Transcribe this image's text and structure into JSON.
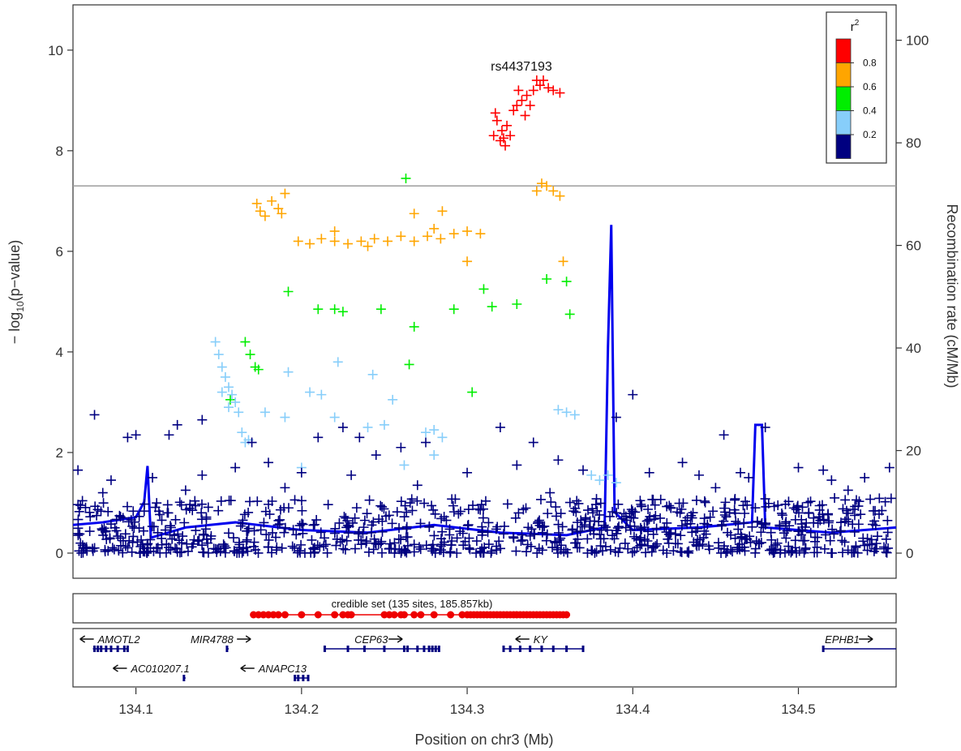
{
  "chart_data": {
    "type": "scatter",
    "title": "",
    "xlabel": "Position on chr3 (Mb)",
    "ylabel": "− log10(p−value)",
    "y2label": "Recombination rate (cM/Mb)",
    "xlim": [
      134.062,
      134.559
    ],
    "ylim": [
      -0.5,
      10.9
    ],
    "y2lim": [
      -4.9,
      106.9
    ],
    "x_ticks": [
      134.1,
      134.2,
      134.3,
      134.4,
      134.5
    ],
    "x_tick_labels": [
      "134.1",
      "134.2",
      "134.3",
      "134.4",
      "134.5"
    ],
    "y_ticks": [
      0,
      2,
      4,
      6,
      8,
      10
    ],
    "y_tick_labels": [
      "0",
      "2",
      "4",
      "6",
      "8",
      "10"
    ],
    "y2_ticks": [
      0,
      20,
      40,
      60,
      80,
      100
    ],
    "y2_tick_labels": [
      "0",
      "20",
      "40",
      "60",
      "80",
      "100"
    ],
    "significance_line": 7.3,
    "lead_snp": {
      "label": "rs4437193",
      "x": 134.345,
      "y": 9.4
    },
    "legend": {
      "title": "r",
      "title_sup": "2",
      "placement": "top-right",
      "bins": [
        {
          "label": "0.8",
          "color": "#ff0000"
        },
        {
          "label": "0.6",
          "color": "#ffa500"
        },
        {
          "label": "0.4",
          "color": "#00ee00"
        },
        {
          "label": "0.2",
          "color": "#87cefa"
        },
        {
          "label": "",
          "color": "#000080"
        }
      ],
      "break_labels": [
        "0.8",
        "0.6",
        "0.4",
        "0.2"
      ]
    },
    "series": [
      {
        "color": "#ff0000",
        "points": [
          [
            134.316,
            8.3
          ],
          [
            134.318,
            8.6
          ],
          [
            134.32,
            8.2
          ],
          [
            134.321,
            8.4
          ],
          [
            134.323,
            8.1
          ],
          [
            134.324,
            8.5
          ],
          [
            134.326,
            8.3
          ],
          [
            134.328,
            8.8
          ],
          [
            134.33,
            8.9
          ],
          [
            134.331,
            9.2
          ],
          [
            134.333,
            9.0
          ],
          [
            134.335,
            8.7
          ],
          [
            134.336,
            9.1
          ],
          [
            134.338,
            8.9
          ],
          [
            134.34,
            9.2
          ],
          [
            134.342,
            9.4
          ],
          [
            134.344,
            9.3
          ],
          [
            134.346,
            9.4
          ],
          [
            134.349,
            9.25
          ],
          [
            134.352,
            9.2
          ],
          [
            134.356,
            9.15
          ],
          [
            134.317,
            8.75
          ],
          [
            134.322,
            8.25
          ]
        ]
      },
      {
        "color": "#ffa500",
        "points": [
          [
            134.173,
            6.95
          ],
          [
            134.175,
            6.8
          ],
          [
            134.178,
            6.7
          ],
          [
            134.182,
            7.0
          ],
          [
            134.186,
            6.85
          ],
          [
            134.188,
            6.75
          ],
          [
            134.19,
            7.15
          ],
          [
            134.198,
            6.2
          ],
          [
            134.205,
            6.15
          ],
          [
            134.212,
            6.25
          ],
          [
            134.22,
            6.2
          ],
          [
            134.228,
            6.15
          ],
          [
            134.236,
            6.2
          ],
          [
            134.244,
            6.25
          ],
          [
            134.252,
            6.2
          ],
          [
            134.26,
            6.3
          ],
          [
            134.268,
            6.2
          ],
          [
            134.276,
            6.3
          ],
          [
            134.284,
            6.25
          ],
          [
            134.292,
            6.35
          ],
          [
            134.3,
            6.4
          ],
          [
            134.308,
            6.35
          ],
          [
            134.268,
            6.75
          ],
          [
            134.285,
            6.8
          ],
          [
            134.3,
            5.8
          ],
          [
            134.342,
            7.2
          ],
          [
            134.345,
            7.35
          ],
          [
            134.348,
            7.3
          ],
          [
            134.352,
            7.2
          ],
          [
            134.356,
            7.1
          ],
          [
            134.358,
            5.8
          ],
          [
            134.22,
            6.4
          ],
          [
            134.24,
            6.1
          ],
          [
            134.28,
            6.45
          ]
        ]
      },
      {
        "color": "#00ee00",
        "points": [
          [
            134.263,
            7.45
          ],
          [
            134.192,
            5.2
          ],
          [
            134.21,
            4.85
          ],
          [
            134.22,
            4.85
          ],
          [
            134.225,
            4.8
          ],
          [
            134.248,
            4.85
          ],
          [
            134.268,
            4.5
          ],
          [
            134.292,
            4.85
          ],
          [
            134.31,
            5.25
          ],
          [
            134.315,
            4.9
          ],
          [
            134.33,
            4.95
          ],
          [
            134.348,
            5.45
          ],
          [
            134.36,
            5.4
          ],
          [
            134.362,
            4.75
          ],
          [
            134.166,
            4.2
          ],
          [
            134.169,
            3.95
          ],
          [
            134.172,
            3.7
          ],
          [
            134.174,
            3.65
          ],
          [
            134.265,
            3.75
          ],
          [
            134.303,
            3.2
          ],
          [
            134.157,
            3.05
          ]
        ]
      },
      {
        "color": "#87cefa",
        "points": [
          [
            134.148,
            4.2
          ],
          [
            134.15,
            3.95
          ],
          [
            134.152,
            3.7
          ],
          [
            134.154,
            3.5
          ],
          [
            134.156,
            3.3
          ],
          [
            134.158,
            3.15
          ],
          [
            134.16,
            3.0
          ],
          [
            134.162,
            2.8
          ],
          [
            134.164,
            2.4
          ],
          [
            134.166,
            2.2
          ],
          [
            134.168,
            2.25
          ],
          [
            134.152,
            3.2
          ],
          [
            134.156,
            2.9
          ],
          [
            134.192,
            3.6
          ],
          [
            134.205,
            3.2
          ],
          [
            134.222,
            3.8
          ],
          [
            134.243,
            3.55
          ],
          [
            134.255,
            3.05
          ],
          [
            134.22,
            2.7
          ],
          [
            134.24,
            2.5
          ],
          [
            134.275,
            2.4
          ],
          [
            134.28,
            2.45
          ],
          [
            134.285,
            2.3
          ],
          [
            134.28,
            1.95
          ],
          [
            134.36,
            2.8
          ],
          [
            134.375,
            1.55
          ],
          [
            134.38,
            1.45
          ],
          [
            134.385,
            1.55
          ],
          [
            134.39,
            1.4
          ],
          [
            134.355,
            2.85
          ],
          [
            134.365,
            2.75
          ],
          [
            134.212,
            3.15
          ],
          [
            134.19,
            2.7
          ],
          [
            134.178,
            2.8
          ],
          [
            134.2,
            1.7
          ],
          [
            134.262,
            1.75
          ],
          [
            134.25,
            2.55
          ]
        ]
      },
      {
        "color": "#000080",
        "points": [
          [
            134.075,
            2.75
          ],
          [
            134.095,
            2.3
          ],
          [
            134.1,
            2.35
          ],
          [
            134.12,
            2.35
          ],
          [
            134.125,
            2.55
          ],
          [
            134.14,
            2.65
          ],
          [
            134.17,
            2.2
          ],
          [
            134.21,
            2.3
          ],
          [
            134.225,
            2.5
          ],
          [
            134.235,
            2.3
          ],
          [
            134.26,
            2.1
          ],
          [
            134.275,
            2.2
          ],
          [
            134.32,
            2.5
          ],
          [
            134.34,
            2.2
          ],
          [
            134.39,
            2.7
          ],
          [
            134.4,
            3.15
          ],
          [
            134.455,
            2.35
          ],
          [
            134.48,
            2.5
          ],
          [
            134.245,
            1.95
          ],
          [
            134.355,
            1.85
          ],
          [
            134.43,
            1.8
          ],
          [
            134.465,
            1.6
          ],
          [
            134.5,
            1.7
          ],
          [
            134.515,
            1.65
          ],
          [
            134.54,
            1.5
          ],
          [
            134.555,
            1.7
          ],
          [
            134.065,
            1.65
          ],
          [
            134.085,
            1.45
          ],
          [
            134.11,
            1.5
          ],
          [
            134.14,
            1.55
          ],
          [
            134.16,
            1.7
          ],
          [
            134.18,
            1.8
          ],
          [
            134.2,
            1.6
          ],
          [
            134.23,
            1.55
          ],
          [
            134.3,
            1.6
          ],
          [
            134.33,
            1.75
          ],
          [
            134.37,
            1.65
          ],
          [
            134.41,
            1.6
          ],
          [
            134.44,
            1.55
          ],
          [
            134.47,
            1.5
          ],
          [
            134.52,
            1.45
          ],
          [
            134.08,
            1.2
          ],
          [
            134.13,
            1.25
          ],
          [
            134.19,
            1.3
          ],
          [
            134.27,
            1.35
          ],
          [
            134.35,
            1.2
          ],
          [
            134.45,
            1.3
          ],
          [
            134.53,
            1.25
          ]
        ]
      }
    ],
    "recombination_color": "#0000ee",
    "recombination": [
      [
        134.062,
        5.5
      ],
      [
        134.08,
        6.0
      ],
      [
        134.1,
        7.0
      ],
      [
        134.105,
        10.0
      ],
      [
        134.107,
        17.0
      ],
      [
        134.109,
        3.0
      ],
      [
        134.13,
        5.0
      ],
      [
        134.16,
        6.0
      ],
      [
        134.2,
        4.5
      ],
      [
        134.24,
        4.0
      ],
      [
        134.28,
        5.5
      ],
      [
        134.32,
        4.0
      ],
      [
        134.36,
        3.5
      ],
      [
        134.383,
        5.0
      ],
      [
        134.385,
        40.0
      ],
      [
        134.387,
        64.0
      ],
      [
        134.389,
        8.0
      ],
      [
        134.4,
        4.5
      ],
      [
        134.44,
        5.0
      ],
      [
        134.472,
        6.0
      ],
      [
        134.474,
        25.0
      ],
      [
        134.478,
        25.0
      ],
      [
        134.48,
        5.0
      ],
      [
        134.52,
        4.0
      ],
      [
        134.559,
        5.0
      ]
    ],
    "credible_set": {
      "label": "credible set (135 sites, 185.857kb)",
      "color": "#ee0000",
      "span": [
        134.17,
        134.36
      ],
      "points": [
        134.171,
        134.174,
        134.177,
        134.18,
        134.183,
        134.186,
        134.19,
        134.2,
        134.21,
        134.22,
        134.225,
        134.228,
        134.23,
        134.25,
        134.253,
        134.256,
        134.26,
        134.262,
        134.268,
        134.272,
        134.28,
        134.29,
        134.297,
        134.3,
        134.302,
        134.304,
        134.306,
        134.308,
        134.31,
        134.312,
        134.314,
        134.316,
        134.318,
        134.32,
        134.322,
        134.324,
        134.326,
        134.328,
        134.33,
        134.332,
        134.334,
        134.336,
        134.338,
        134.34,
        134.342,
        134.344,
        134.346,
        134.348,
        134.35,
        134.352,
        134.354,
        134.356,
        134.358,
        134.36
      ]
    },
    "genes": [
      {
        "name": "AMOTL2",
        "dir": "left",
        "start": 134.074,
        "end": 134.095,
        "row": 0,
        "label_x": 134.077,
        "exons": [
          134.075,
          134.077,
          134.079,
          134.082,
          134.085,
          134.089,
          134.093,
          134.095
        ]
      },
      {
        "name": "MIR4788",
        "dir": "right",
        "start": 134.155,
        "end": 134.156,
        "row": 0,
        "label_x": 134.133,
        "exons": [
          134.155
        ]
      },
      {
        "name": "CEP63",
        "dir": "right",
        "start": 134.214,
        "end": 134.283,
        "row": 0,
        "label_x": 134.232,
        "exons": [
          134.214,
          134.228,
          134.238,
          134.25,
          134.262,
          134.264,
          134.27,
          134.274,
          134.277,
          134.279,
          134.281,
          134.283
        ]
      },
      {
        "name": "KY",
        "dir": "left",
        "start": 134.322,
        "end": 134.37,
        "row": 0,
        "label_x": 134.34,
        "exons": [
          134.322,
          134.326,
          134.332,
          134.338,
          134.345,
          134.352,
          134.36,
          134.37
        ]
      },
      {
        "name": "EPHB1",
        "dir": "right",
        "start": 134.515,
        "end": 134.559,
        "row": 0,
        "label_x": 134.516,
        "exons": [
          134.515
        ]
      },
      {
        "name": "AC010207.1",
        "dir": "left",
        "start": 134.129,
        "end": 134.13,
        "row": 1,
        "label_x": 134.097,
        "exons": [
          134.129
        ]
      },
      {
        "name": "ANAPC13",
        "dir": "left",
        "start": 134.196,
        "end": 134.204,
        "row": 1,
        "label_x": 134.174,
        "exons": [
          134.196,
          134.198,
          134.201,
          134.204
        ]
      }
    ]
  }
}
